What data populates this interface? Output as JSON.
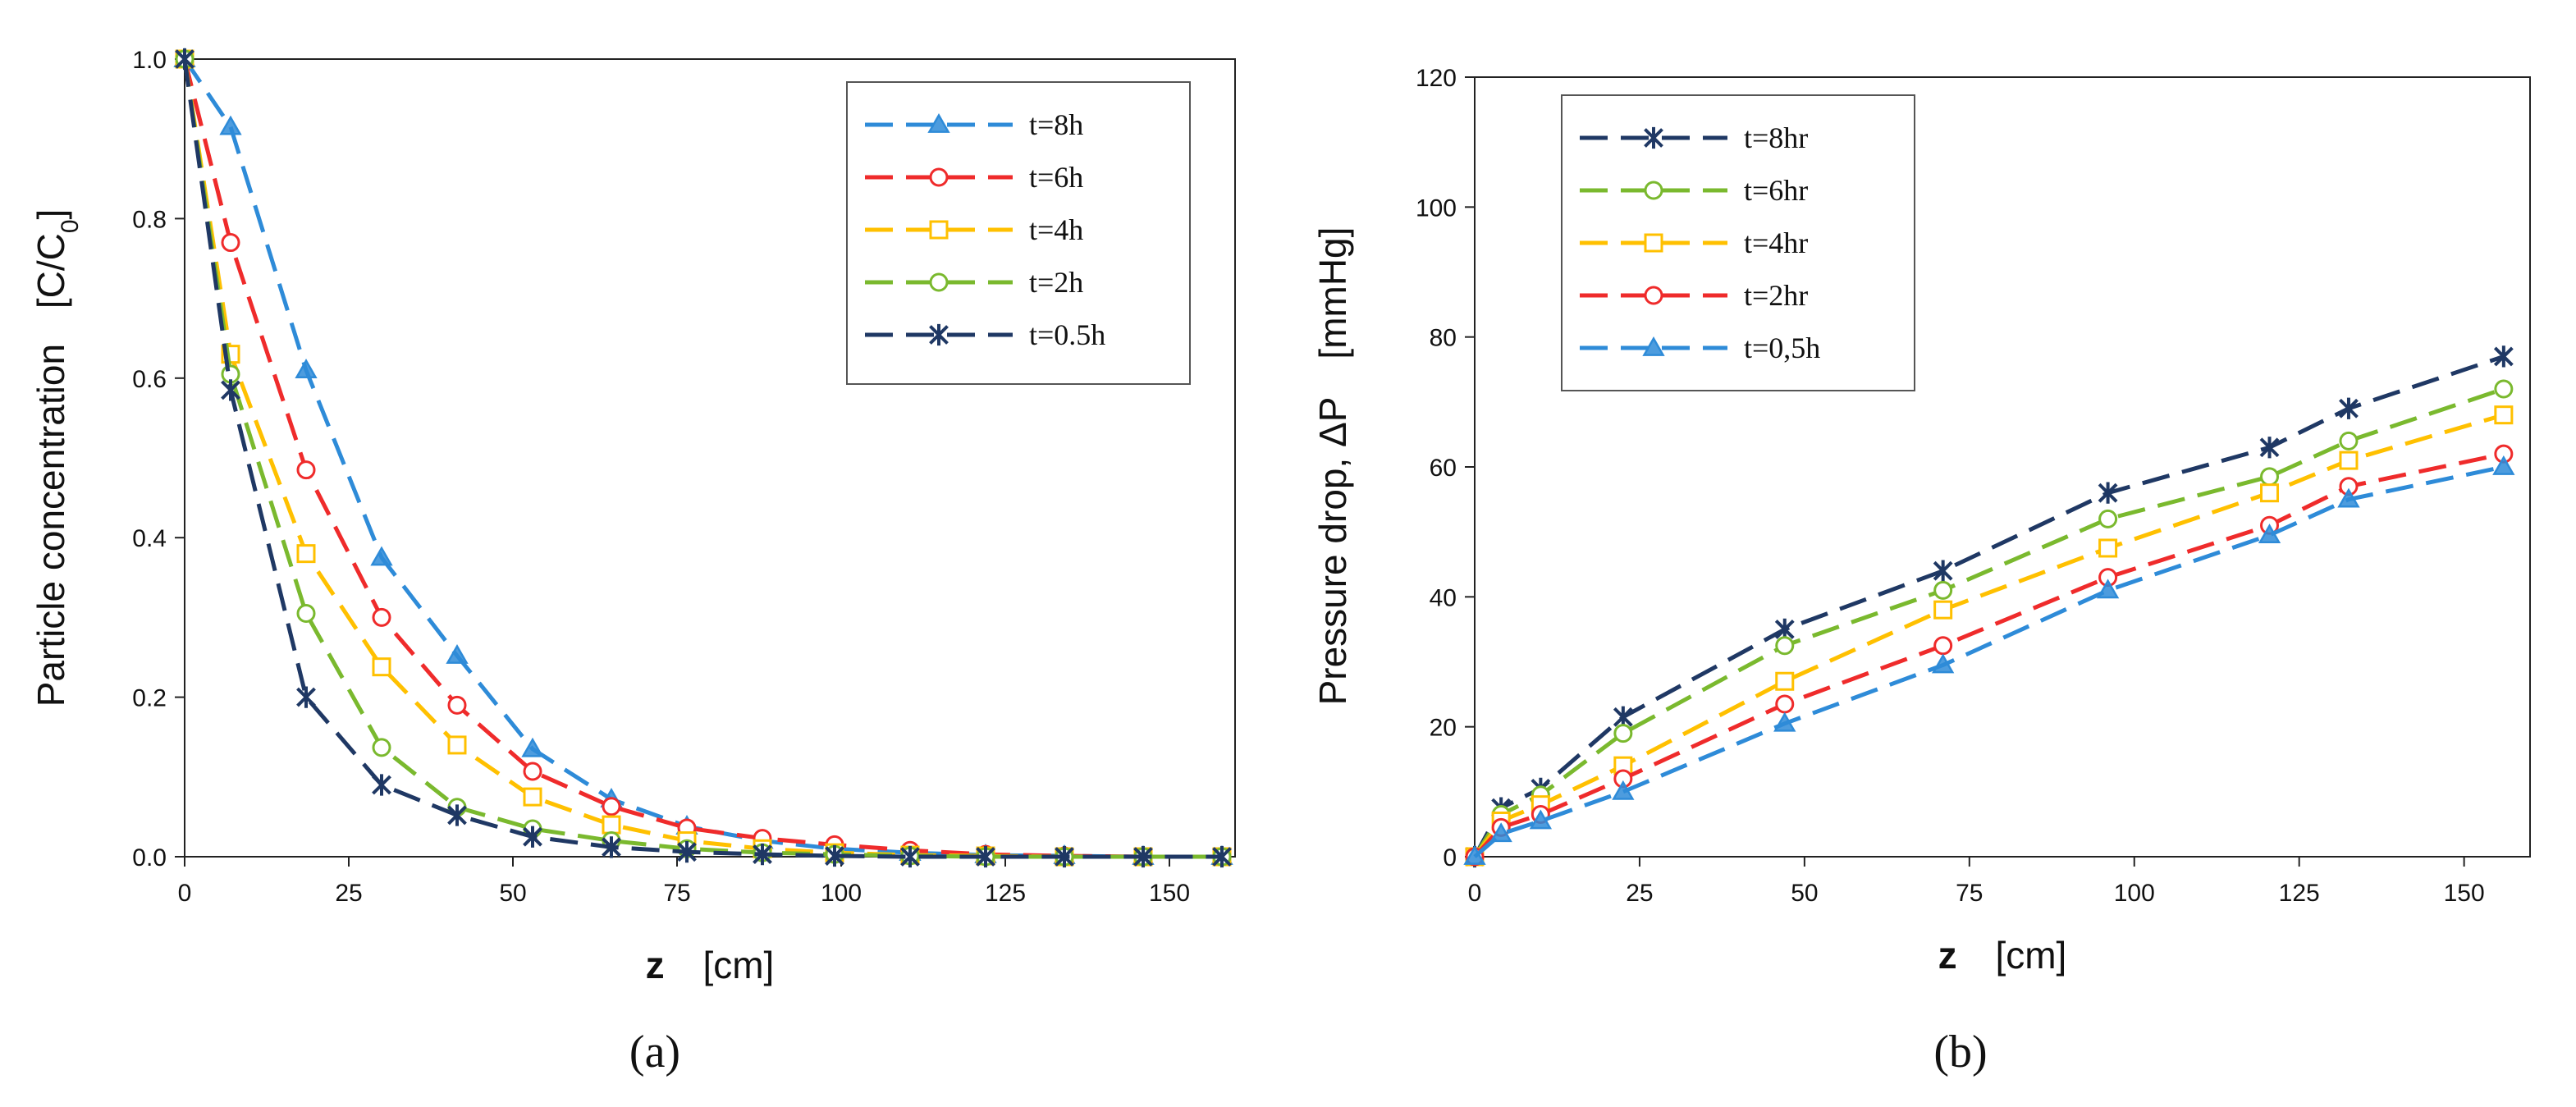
{
  "chart_data": [
    {
      "type": "line",
      "panel_label": "(a)",
      "xlabel_var": "z",
      "xlabel_unit": "[cm]",
      "ylabel_main": "Particle concentration",
      "ylabel_unit_open": "[C/C",
      "ylabel_unit_sub": "0",
      "ylabel_unit_close": "]",
      "xlim": [
        0,
        160
      ],
      "ylim": [
        0,
        1.0
      ],
      "xticks": [
        0,
        25,
        50,
        75,
        100,
        125,
        150
      ],
      "xtick_labels": [
        "0",
        "25",
        "50",
        "75",
        "100",
        "125",
        "150"
      ],
      "yticks": [
        0,
        0.2,
        0.4,
        0.6,
        0.8,
        1.0
      ],
      "ytick_labels": [
        "0.0",
        "0.2",
        "0.4",
        "0.6",
        "0.8",
        "1.0"
      ],
      "legend_position": "top-right",
      "series": [
        {
          "name": "t=8h",
          "color": "#2E8BD8",
          "marker": "triangle",
          "x": [
            0,
            7,
            18.5,
            30,
            41.5,
            53,
            65,
            76.5,
            88,
            99,
            110.5,
            122,
            134,
            146,
            158
          ],
          "y": [
            1.0,
            0.915,
            0.61,
            0.375,
            0.252,
            0.135,
            0.072,
            0.038,
            0.02,
            0.01,
            0.005,
            0.002,
            0.001,
            0.0,
            0.0
          ]
        },
        {
          "name": "t=6h",
          "color": "#EF2B2B",
          "marker": "circle",
          "x": [
            0,
            7,
            18.5,
            30,
            41.5,
            53,
            65,
            76.5,
            88,
            99,
            110.5,
            122,
            134,
            146,
            158
          ],
          "y": [
            1.0,
            0.77,
            0.485,
            0.3,
            0.19,
            0.107,
            0.063,
            0.036,
            0.023,
            0.015,
            0.008,
            0.003,
            0.001,
            0.0,
            0.0
          ]
        },
        {
          "name": "t=4h",
          "color": "#FFC000",
          "marker": "square",
          "x": [
            0,
            7,
            18.5,
            30,
            41.5,
            53,
            65,
            76.5,
            88,
            99,
            110.5,
            122,
            134,
            146,
            158
          ],
          "y": [
            1.0,
            0.63,
            0.38,
            0.238,
            0.14,
            0.075,
            0.04,
            0.02,
            0.01,
            0.005,
            0.002,
            0.001,
            0.0,
            0.0,
            0.0
          ]
        },
        {
          "name": "t=2h",
          "color": "#7AB92E",
          "marker": "circle",
          "x": [
            0,
            7,
            18.5,
            30,
            41.5,
            53,
            65,
            76.5,
            88,
            99,
            110.5,
            122,
            134,
            146,
            158
          ],
          "y": [
            1.0,
            0.605,
            0.305,
            0.137,
            0.062,
            0.035,
            0.02,
            0.01,
            0.005,
            0.003,
            0.001,
            0.0,
            0.0,
            0.0,
            0.0
          ]
        },
        {
          "name": "t=0.5h",
          "color": "#1F3864",
          "marker": "asterisk",
          "x": [
            0,
            7,
            18.5,
            30,
            41.5,
            53,
            65,
            76.5,
            88,
            99,
            110.5,
            122,
            134,
            146,
            158
          ],
          "y": [
            1.0,
            0.585,
            0.2,
            0.09,
            0.052,
            0.025,
            0.012,
            0.006,
            0.003,
            0.001,
            0.0,
            0.0,
            0.0,
            0.0,
            0.0
          ]
        }
      ]
    },
    {
      "type": "line",
      "panel_label": "(b)",
      "xlabel_var": "z",
      "xlabel_unit": "[cm]",
      "ylabel_main": "Pressure drop, ΔP",
      "ylabel_unit": "[mmHg]",
      "xlim": [
        0,
        160
      ],
      "ylim": [
        0,
        120
      ],
      "xticks": [
        0,
        25,
        50,
        75,
        100,
        125,
        150
      ],
      "xtick_labels": [
        "0",
        "25",
        "50",
        "75",
        "100",
        "125",
        "150"
      ],
      "yticks": [
        0,
        20,
        40,
        60,
        80,
        100,
        120
      ],
      "ytick_labels": [
        "0",
        "20",
        "40",
        "60",
        "80",
        "100",
        "120"
      ],
      "legend_position": "top-left",
      "series": [
        {
          "name": "t=8hr",
          "color": "#1F3864",
          "marker": "asterisk",
          "x": [
            0,
            4,
            10,
            22.5,
            47,
            71,
            96,
            120.5,
            132.5,
            156
          ],
          "y": [
            0,
            7.5,
            10.5,
            21.5,
            35,
            44,
            56,
            63,
            69,
            77
          ]
        },
        {
          "name": "t=6hr",
          "color": "#7AB92E",
          "marker": "circle",
          "x": [
            0,
            4,
            10,
            22.5,
            47,
            71,
            96,
            120.5,
            132.5,
            156
          ],
          "y": [
            0,
            6.5,
            9.5,
            19,
            32.5,
            41,
            52,
            58.5,
            64,
            72
          ]
        },
        {
          "name": "t=4hr",
          "color": "#FFC000",
          "marker": "square",
          "x": [
            0,
            4,
            10,
            22.5,
            47,
            71,
            96,
            120.5,
            132.5,
            156
          ],
          "y": [
            0,
            5.5,
            8,
            14,
            27,
            38,
            47.5,
            56,
            61,
            68
          ]
        },
        {
          "name": "t=2hr",
          "color": "#EF2B2B",
          "marker": "circle",
          "x": [
            0,
            4,
            10,
            22.5,
            47,
            71,
            96,
            120.5,
            132.5,
            156
          ],
          "y": [
            0,
            4.5,
            6.5,
            12,
            23.5,
            32.5,
            43,
            51,
            57,
            62
          ]
        },
        {
          "name": "t=0,5h",
          "color": "#2E8BD8",
          "marker": "triangle",
          "x": [
            0,
            4,
            10,
            22.5,
            47,
            71,
            96,
            120.5,
            132.5,
            156
          ],
          "y": [
            0,
            3.5,
            5.5,
            10,
            20.5,
            29.5,
            41,
            49.5,
            55,
            60
          ]
        }
      ]
    }
  ]
}
